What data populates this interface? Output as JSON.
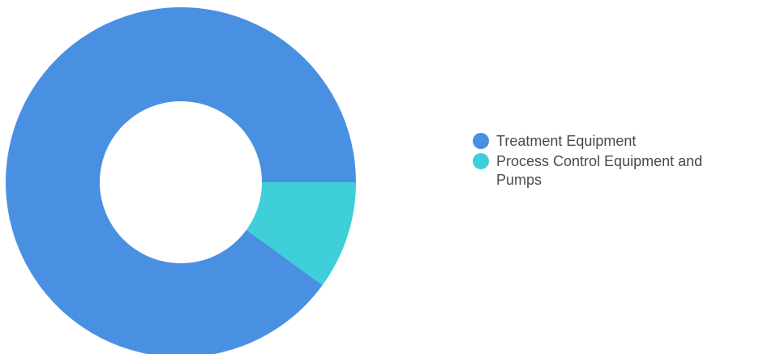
{
  "chart_data": {
    "type": "pie",
    "variant": "donut",
    "series": [
      {
        "name": "Treatment Equipment",
        "value": 90,
        "color": "#4a90e2"
      },
      {
        "name": "Process Control Equipment and Pumps",
        "value": 10,
        "color": "#3ecfd9"
      }
    ],
    "legend_placement": "right"
  }
}
